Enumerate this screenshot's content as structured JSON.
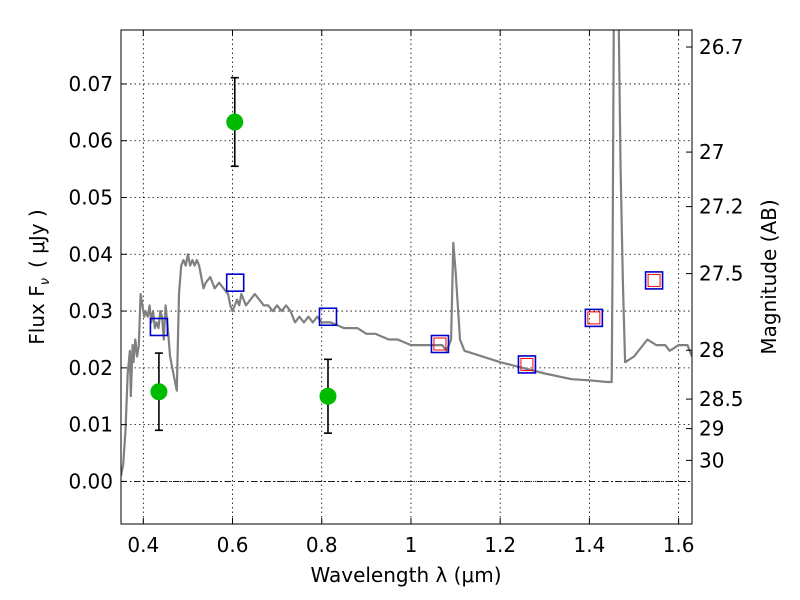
{
  "chart_data": {
    "type": "scatter",
    "xlabel": "Wavelength  λ (μm)",
    "ylabel_left": "Flux  F",
    "ylabel_left_sub": "ν",
    "ylabel_left_unit": "( μJy )",
    "ylabel_right": "Magnitude (AB)",
    "xlim": [
      0.35,
      1.63
    ],
    "ylim": [
      -0.0075,
      0.0795
    ],
    "grid": true,
    "x_ticks": [
      0.4,
      0.6,
      0.8,
      1.0,
      1.2,
      1.4,
      1.6
    ],
    "x_tick_labels": [
      "0.4",
      "0.6",
      "0.8",
      "1",
      "1.2",
      "1.4",
      "1.6"
    ],
    "y_ticks": [
      0.0,
      0.01,
      0.02,
      0.03,
      0.04,
      0.05,
      0.06,
      0.07
    ],
    "y_tick_labels": [
      "0.00",
      "0.01",
      "0.02",
      "0.03",
      "0.04",
      "0.05",
      "0.06",
      "0.07"
    ],
    "right_ticks": [
      {
        "label": "26.7",
        "flux": 0.0765
      },
      {
        "label": "27",
        "flux": 0.058
      },
      {
        "label": "27.2",
        "flux": 0.0484
      },
      {
        "label": "27.5",
        "flux": 0.0366
      },
      {
        "label": "28",
        "flux": 0.0231
      },
      {
        "label": "28.5",
        "flux": 0.0145
      },
      {
        "label": "29",
        "flux": 0.0093
      },
      {
        "label": "30",
        "flux": 0.0037
      }
    ],
    "measurements": {
      "color": "#00bb00",
      "x": [
        0.435,
        0.605,
        0.814
      ],
      "y": [
        0.0158,
        0.0633,
        0.015
      ],
      "yerr": [
        0.0068,
        0.0078,
        0.0065
      ]
    },
    "model_bands_blue": {
      "color": "#0000cc",
      "x": [
        0.435,
        0.606,
        0.814,
        1.065,
        1.26,
        1.41,
        1.545
      ],
      "y": [
        0.0272,
        0.035,
        0.029,
        0.0242,
        0.0206,
        0.0288,
        0.0354
      ]
    },
    "model_bands_red": {
      "color": "#ff0000",
      "x": [
        1.065,
        1.26,
        1.41,
        1.545
      ],
      "y": [
        0.0242,
        0.0206,
        0.0288,
        0.0354
      ]
    },
    "spectrum": {
      "color": "#808080",
      "x": [
        0.35,
        0.355,
        0.36,
        0.365,
        0.37,
        0.372,
        0.376,
        0.378,
        0.382,
        0.386,
        0.39,
        0.394,
        0.398,
        0.402,
        0.405,
        0.41,
        0.414,
        0.418,
        0.422,
        0.426,
        0.43,
        0.434,
        0.438,
        0.442,
        0.446,
        0.45,
        0.455,
        0.46,
        0.465,
        0.47,
        0.475,
        0.48,
        0.485,
        0.49,
        0.495,
        0.5,
        0.505,
        0.51,
        0.515,
        0.52,
        0.525,
        0.53,
        0.535,
        0.54,
        0.55,
        0.56,
        0.57,
        0.58,
        0.59,
        0.595,
        0.6,
        0.605,
        0.61,
        0.615,
        0.62,
        0.63,
        0.64,
        0.65,
        0.66,
        0.67,
        0.68,
        0.69,
        0.7,
        0.71,
        0.72,
        0.73,
        0.74,
        0.75,
        0.76,
        0.77,
        0.78,
        0.79,
        0.8,
        0.82,
        0.85,
        0.88,
        0.9,
        0.92,
        0.95,
        0.97,
        1.0,
        1.02,
        1.05,
        1.07,
        1.08,
        1.09,
        1.095,
        1.1,
        1.11,
        1.12,
        1.2,
        1.3,
        1.36,
        1.4,
        1.44,
        1.45,
        1.452,
        1.455,
        1.46,
        1.465,
        1.47,
        1.475,
        1.48,
        1.5,
        1.53,
        1.55,
        1.57,
        1.58,
        1.6,
        1.62,
        1.63
      ],
      "y": [
        0.001,
        0.003,
        0.009,
        0.019,
        0.023,
        0.015,
        0.024,
        0.021,
        0.025,
        0.022,
        0.024,
        0.033,
        0.031,
        0.029,
        0.03,
        0.029,
        0.031,
        0.028,
        0.03,
        0.027,
        0.028,
        0.027,
        0.03,
        0.029,
        0.025,
        0.031,
        0.027,
        0.022,
        0.02,
        0.018,
        0.016,
        0.033,
        0.038,
        0.039,
        0.038,
        0.04,
        0.038,
        0.039,
        0.038,
        0.039,
        0.038,
        0.036,
        0.034,
        0.035,
        0.036,
        0.034,
        0.035,
        0.034,
        0.033,
        0.031,
        0.03,
        0.031,
        0.032,
        0.031,
        0.033,
        0.031,
        0.032,
        0.033,
        0.032,
        0.031,
        0.031,
        0.03,
        0.031,
        0.03,
        0.031,
        0.03,
        0.028,
        0.029,
        0.028,
        0.029,
        0.028,
        0.029,
        0.028,
        0.028,
        0.027,
        0.027,
        0.026,
        0.026,
        0.025,
        0.025,
        0.024,
        0.024,
        0.024,
        0.024,
        0.023,
        0.025,
        0.042,
        0.037,
        0.025,
        0.023,
        0.021,
        0.019,
        0.018,
        0.0178,
        0.0175,
        0.0175,
        0.04,
        0.085,
        0.085,
        0.085,
        0.055,
        0.035,
        0.021,
        0.022,
        0.025,
        0.024,
        0.024,
        0.023,
        0.024,
        0.024,
        0.022
      ]
    }
  }
}
